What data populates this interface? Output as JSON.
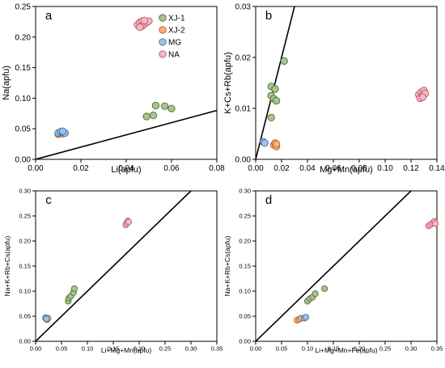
{
  "chart_data": [
    {
      "type": "scatter",
      "panel_label": "a",
      "xlabel": "Li(apfu)",
      "ylabel": "Na(apfu)",
      "xlim": [
        0,
        0.08
      ],
      "ylim": [
        0,
        0.25
      ],
      "xticks": [
        0,
        0.02,
        0.04,
        0.06,
        0.08
      ],
      "yticks": [
        0,
        0.05,
        0.1,
        0.15,
        0.2,
        0.25
      ],
      "xtick_labels": [
        "0.00",
        "0.02",
        "0.04",
        "0.06",
        "0.08"
      ],
      "ytick_labels": [
        "0.00",
        "0.05",
        "0.10",
        "0.15",
        "0.20",
        "0.25"
      ],
      "reference_line": [
        [
          0,
          0
        ],
        [
          0.08,
          0.08
        ]
      ],
      "legend": {
        "position": "top-right"
      },
      "series": [
        {
          "name": "XJ-1",
          "points": [
            [
              0.049,
              0.07
            ],
            [
              0.052,
              0.072
            ],
            [
              0.053,
              0.088
            ],
            [
              0.057,
              0.087
            ],
            [
              0.06,
              0.083
            ]
          ]
        },
        {
          "name": "XJ-2",
          "points": [
            [
              0.01,
              0.041
            ],
            [
              0.011,
              0.043
            ],
            [
              0.012,
              0.042
            ]
          ]
        },
        {
          "name": "MG",
          "points": [
            [
              0.01,
              0.043
            ],
            [
              0.011,
              0.045
            ],
            [
              0.012,
              0.044
            ],
            [
              0.013,
              0.043
            ],
            [
              0.012,
              0.046
            ]
          ]
        },
        {
          "name": "NA",
          "points": [
            [
              0.045,
              0.22
            ],
            [
              0.046,
              0.224
            ],
            [
              0.047,
              0.226
            ],
            [
              0.047,
              0.218
            ],
            [
              0.048,
              0.221
            ],
            [
              0.049,
              0.224
            ],
            [
              0.05,
              0.226
            ],
            [
              0.048,
              0.227
            ],
            [
              0.046,
              0.216
            ]
          ]
        }
      ]
    },
    {
      "type": "scatter",
      "panel_label": "b",
      "xlabel": "Mg+Mn(apfu)",
      "ylabel": "K+Cs+Rb(apfu)",
      "xlim": [
        0,
        0.14
      ],
      "ylim": [
        0,
        0.03
      ],
      "xticks": [
        0,
        0.02,
        0.04,
        0.06,
        0.08,
        0.1,
        0.12,
        0.14
      ],
      "yticks": [
        0,
        0.01,
        0.02,
        0.03
      ],
      "xtick_labels": [
        "0.00",
        "0.02",
        "0.04",
        "0.06",
        "0.08",
        "0.10",
        "0.12",
        "0.14"
      ],
      "ytick_labels": [
        "0.00",
        "0.01",
        "0.02",
        "0.03"
      ],
      "reference_line": [
        [
          0,
          0
        ],
        [
          0.03,
          0.03
        ]
      ],
      "series": [
        {
          "name": "XJ-1",
          "points": [
            [
              0.012,
              0.0082
            ],
            [
              0.012,
              0.0125
            ],
            [
              0.012,
              0.0143
            ],
            [
              0.014,
              0.0119
            ],
            [
              0.015,
              0.0138
            ],
            [
              0.016,
              0.0115
            ],
            [
              0.022,
              0.0193
            ]
          ]
        },
        {
          "name": "XJ-2",
          "points": [
            [
              0.014,
              0.0028
            ],
            [
              0.015,
              0.0032
            ],
            [
              0.016,
              0.0025
            ],
            [
              0.016,
              0.003
            ]
          ]
        },
        {
          "name": "MG",
          "points": [
            [
              0.006,
              0.0034
            ],
            [
              0.007,
              0.0032
            ]
          ]
        },
        {
          "name": "NA",
          "points": [
            [
              0.126,
              0.0127
            ],
            [
              0.127,
              0.012
            ],
            [
              0.128,
              0.0132
            ],
            [
              0.129,
              0.0125
            ],
            [
              0.13,
              0.0135
            ],
            [
              0.131,
              0.0129
            ],
            [
              0.129,
              0.0122
            ]
          ]
        }
      ]
    },
    {
      "type": "scatter",
      "panel_label": "c",
      "xlabel": "Li+Mg+Mn(apfu)",
      "ylabel": "Na+K+Rb+Cs(apfu)",
      "xlim": [
        0,
        0.35
      ],
      "ylim": [
        0,
        0.3
      ],
      "xticks": [
        0,
        0.05,
        0.1,
        0.15,
        0.2,
        0.25,
        0.3,
        0.35
      ],
      "yticks": [
        0,
        0.05,
        0.1,
        0.15,
        0.2,
        0.25,
        0.3
      ],
      "xtick_labels": [
        "0.00",
        "0.05",
        "0.10",
        "0.15",
        "0.20",
        "0.25",
        "0.30",
        "0.35"
      ],
      "ytick_labels": [
        "0.00",
        "0.05",
        "0.10",
        "0.15",
        "0.20",
        "0.25",
        "0.30"
      ],
      "reference_line": [
        [
          0,
          0
        ],
        [
          0.3,
          0.3
        ]
      ],
      "series": [
        {
          "name": "XJ-1",
          "points": [
            [
              0.063,
              0.08
            ],
            [
              0.064,
              0.086
            ],
            [
              0.068,
              0.09
            ],
            [
              0.073,
              0.097
            ],
            [
              0.075,
              0.105
            ]
          ]
        },
        {
          "name": "XJ-2",
          "points": [
            [
              0.02,
              0.045
            ],
            [
              0.022,
              0.043
            ],
            [
              0.024,
              0.046
            ]
          ]
        },
        {
          "name": "MG",
          "points": [
            [
              0.019,
              0.047
            ],
            [
              0.021,
              0.045
            ]
          ]
        },
        {
          "name": "NA",
          "points": [
            [
              0.174,
              0.232
            ],
            [
              0.176,
              0.236
            ],
            [
              0.178,
              0.24
            ],
            [
              0.18,
              0.238
            ]
          ]
        }
      ]
    },
    {
      "type": "scatter",
      "panel_label": "d",
      "xlabel": "Li+Mg+Mn+Fe(apfu)",
      "ylabel": "Na+K+Rb+Cs(apfu)",
      "xlim": [
        0,
        0.35
      ],
      "ylim": [
        0,
        0.3
      ],
      "xticks": [
        0,
        0.05,
        0.1,
        0.15,
        0.2,
        0.25,
        0.3,
        0.35
      ],
      "yticks": [
        0,
        0.05,
        0.1,
        0.15,
        0.2,
        0.25,
        0.3
      ],
      "xtick_labels": [
        "0.00",
        "0.05",
        "0.10",
        "0.15",
        "0.20",
        "0.25",
        "0.30",
        "0.35"
      ],
      "ytick_labels": [
        "0.00",
        "0.05",
        "0.10",
        "0.15",
        "0.20",
        "0.25",
        "0.30"
      ],
      "reference_line": [
        [
          0,
          0
        ],
        [
          0.3,
          0.3
        ]
      ],
      "series": [
        {
          "name": "XJ-1",
          "points": [
            [
              0.1,
              0.08
            ],
            [
              0.105,
              0.085
            ],
            [
              0.11,
              0.088
            ],
            [
              0.115,
              0.095
            ],
            [
              0.133,
              0.105
            ]
          ]
        },
        {
          "name": "XJ-2",
          "points": [
            [
              0.08,
              0.042
            ],
            [
              0.084,
              0.044
            ],
            [
              0.088,
              0.046
            ]
          ]
        },
        {
          "name": "MG",
          "points": [
            [
              0.094,
              0.046
            ],
            [
              0.097,
              0.048
            ]
          ]
        },
        {
          "name": "NA",
          "points": [
            [
              0.334,
              0.23
            ],
            [
              0.338,
              0.233
            ],
            [
              0.342,
              0.236
            ],
            [
              0.345,
              0.239
            ],
            [
              0.347,
              0.235
            ]
          ]
        }
      ]
    }
  ],
  "styles": {
    "XJ-1": {
      "fill": "#a9c48c",
      "stroke": "#4f6e3a"
    },
    "XJ-2": {
      "fill": "#f6b381",
      "stroke": "#b65e20"
    },
    "MG": {
      "fill": "#9cc2e6",
      "stroke": "#3c6fa8"
    },
    "NA": {
      "fill": "#f5b8c4",
      "stroke": "#b45b6c"
    }
  }
}
